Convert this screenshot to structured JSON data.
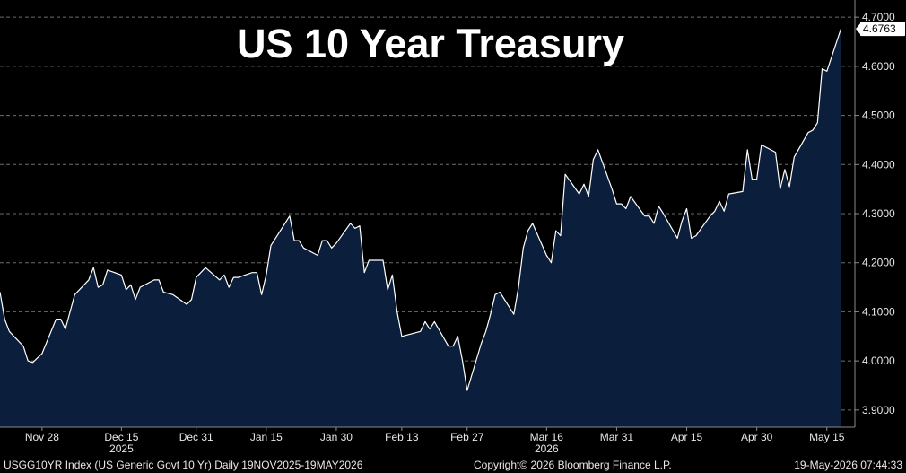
{
  "colors": {
    "background": "#000000",
    "fill": "#0b1f3d",
    "line": "#ffffff",
    "grid": "#6d6d6d",
    "text": "#e8e8e8"
  },
  "footer": {
    "left": "USGG10YR Index (US Generic Govt 10 Yr) Daily 19NOV2025-19MAY2026",
    "center": "Copyright© 2026 Bloomberg Finance L.P.",
    "right": "19-May-2026 07:44:33"
  },
  "chart_data": {
    "type": "area",
    "title": "US 10 Year Treasury",
    "last_value_label": "4.6763",
    "ylim": [
      3.865,
      4.735
    ],
    "xlim": [
      "2025-11-19",
      "2026-05-21"
    ],
    "grid": true,
    "y_ticks": [
      "3.9000",
      "4.0000",
      "4.1000",
      "4.2000",
      "4.3000",
      "4.4000",
      "4.5000",
      "4.6000",
      "4.7000"
    ],
    "x_ticks": [
      {
        "date": "2025-11-28",
        "label": "Nov 28"
      },
      {
        "date": "2025-12-15",
        "label": "Dec 15",
        "year": "2025"
      },
      {
        "date": "2025-12-31",
        "label": "Dec 31"
      },
      {
        "date": "2026-01-15",
        "label": "Jan 15"
      },
      {
        "date": "2026-01-30",
        "label": "Jan 30"
      },
      {
        "date": "2026-02-13",
        "label": "Feb 13"
      },
      {
        "date": "2026-02-27",
        "label": "Feb 27"
      },
      {
        "date": "2026-03-16",
        "label": "Mar 16",
        "year": "2026"
      },
      {
        "date": "2026-03-31",
        "label": "Mar 31"
      },
      {
        "date": "2026-04-15",
        "label": "Apr 15"
      },
      {
        "date": "2026-04-30",
        "label": "Apr 30"
      },
      {
        "date": "2026-05-15",
        "label": "May 15"
      }
    ],
    "series": [
      {
        "points": [
          [
            "2025-11-19",
            4.14
          ],
          [
            "2025-11-20",
            4.085
          ],
          [
            "2025-11-21",
            4.06
          ],
          [
            "2025-11-24",
            4.03
          ],
          [
            "2025-11-25",
            4.0
          ],
          [
            "2025-11-26",
            3.997
          ],
          [
            "2025-11-28",
            4.015
          ],
          [
            "2025-12-01",
            4.085
          ],
          [
            "2025-12-02",
            4.085
          ],
          [
            "2025-12-03",
            4.065
          ],
          [
            "2025-12-04",
            4.1
          ],
          [
            "2025-12-05",
            4.135
          ],
          [
            "2025-12-08",
            4.165
          ],
          [
            "2025-12-09",
            4.19
          ],
          [
            "2025-12-10",
            4.15
          ],
          [
            "2025-12-11",
            4.155
          ],
          [
            "2025-12-12",
            4.185
          ],
          [
            "2025-12-15",
            4.175
          ],
          [
            "2025-12-16",
            4.145
          ],
          [
            "2025-12-17",
            4.155
          ],
          [
            "2025-12-18",
            4.125
          ],
          [
            "2025-12-19",
            4.15
          ],
          [
            "2025-12-22",
            4.165
          ],
          [
            "2025-12-23",
            4.165
          ],
          [
            "2025-12-24",
            4.14
          ],
          [
            "2025-12-26",
            4.135
          ],
          [
            "2025-12-29",
            4.115
          ],
          [
            "2025-12-30",
            4.125
          ],
          [
            "2025-12-31",
            4.17
          ],
          [
            "2026-01-02",
            4.19
          ],
          [
            "2026-01-05",
            4.165
          ],
          [
            "2026-01-06",
            4.175
          ],
          [
            "2026-01-07",
            4.15
          ],
          [
            "2026-01-08",
            4.17
          ],
          [
            "2026-01-09",
            4.17
          ],
          [
            "2026-01-12",
            4.18
          ],
          [
            "2026-01-13",
            4.18
          ],
          [
            "2026-01-14",
            4.135
          ],
          [
            "2026-01-15",
            4.175
          ],
          [
            "2026-01-16",
            4.235
          ],
          [
            "2026-01-20",
            4.295
          ],
          [
            "2026-01-21",
            4.245
          ],
          [
            "2026-01-22",
            4.245
          ],
          [
            "2026-01-23",
            4.23
          ],
          [
            "2026-01-26",
            4.215
          ],
          [
            "2026-01-27",
            4.245
          ],
          [
            "2026-01-28",
            4.245
          ],
          [
            "2026-01-29",
            4.23
          ],
          [
            "2026-01-30",
            4.24
          ],
          [
            "2026-02-02",
            4.28
          ],
          [
            "2026-02-03",
            4.27
          ],
          [
            "2026-02-04",
            4.275
          ],
          [
            "2026-02-05",
            4.18
          ],
          [
            "2026-02-06",
            4.205
          ],
          [
            "2026-02-09",
            4.205
          ],
          [
            "2026-02-10",
            4.145
          ],
          [
            "2026-02-11",
            4.175
          ],
          [
            "2026-02-12",
            4.1
          ],
          [
            "2026-02-13",
            4.05
          ],
          [
            "2026-02-17",
            4.06
          ],
          [
            "2026-02-18",
            4.08
          ],
          [
            "2026-02-19",
            4.065
          ],
          [
            "2026-02-20",
            4.08
          ],
          [
            "2026-02-23",
            4.03
          ],
          [
            "2026-02-24",
            4.03
          ],
          [
            "2026-02-25",
            4.05
          ],
          [
            "2026-02-26",
            4.0
          ],
          [
            "2026-02-27",
            3.94
          ],
          [
            "2026-03-02",
            4.035
          ],
          [
            "2026-03-03",
            4.06
          ],
          [
            "2026-03-04",
            4.095
          ],
          [
            "2026-03-05",
            4.135
          ],
          [
            "2026-03-06",
            4.14
          ],
          [
            "2026-03-09",
            4.095
          ],
          [
            "2026-03-10",
            4.15
          ],
          [
            "2026-03-11",
            4.23
          ],
          [
            "2026-03-12",
            4.265
          ],
          [
            "2026-03-13",
            4.28
          ],
          [
            "2026-03-16",
            4.215
          ],
          [
            "2026-03-17",
            4.2
          ],
          [
            "2026-03-18",
            4.265
          ],
          [
            "2026-03-19",
            4.255
          ],
          [
            "2026-03-20",
            4.38
          ],
          [
            "2026-03-23",
            4.34
          ],
          [
            "2026-03-24",
            4.36
          ],
          [
            "2026-03-25",
            4.335
          ],
          [
            "2026-03-26",
            4.41
          ],
          [
            "2026-03-27",
            4.43
          ],
          [
            "2026-03-30",
            4.35
          ],
          [
            "2026-03-31",
            4.32
          ],
          [
            "2026-04-01",
            4.32
          ],
          [
            "2026-04-02",
            4.31
          ],
          [
            "2026-04-03",
            4.335
          ],
          [
            "2026-04-06",
            4.295
          ],
          [
            "2026-04-07",
            4.295
          ],
          [
            "2026-04-08",
            4.28
          ],
          [
            "2026-04-09",
            4.315
          ],
          [
            "2026-04-10",
            4.3
          ],
          [
            "2026-04-13",
            4.25
          ],
          [
            "2026-04-14",
            4.285
          ],
          [
            "2026-04-15",
            4.31
          ],
          [
            "2026-04-16",
            4.25
          ],
          [
            "2026-04-17",
            4.255
          ],
          [
            "2026-04-20",
            4.295
          ],
          [
            "2026-04-21",
            4.305
          ],
          [
            "2026-04-22",
            4.325
          ],
          [
            "2026-04-23",
            4.305
          ],
          [
            "2026-04-24",
            4.34
          ],
          [
            "2026-04-27",
            4.345
          ],
          [
            "2026-04-28",
            4.43
          ],
          [
            "2026-04-29",
            4.37
          ],
          [
            "2026-04-30",
            4.37
          ],
          [
            "2026-05-01",
            4.44
          ],
          [
            "2026-05-04",
            4.425
          ],
          [
            "2026-05-05",
            4.35
          ],
          [
            "2026-05-06",
            4.39
          ],
          [
            "2026-05-07",
            4.355
          ],
          [
            "2026-05-08",
            4.415
          ],
          [
            "2026-05-11",
            4.465
          ],
          [
            "2026-05-12",
            4.47
          ],
          [
            "2026-05-13",
            4.485
          ],
          [
            "2026-05-14",
            4.595
          ],
          [
            "2026-05-15",
            4.59
          ],
          [
            "2026-05-18",
            4.676
          ]
        ]
      }
    ]
  }
}
